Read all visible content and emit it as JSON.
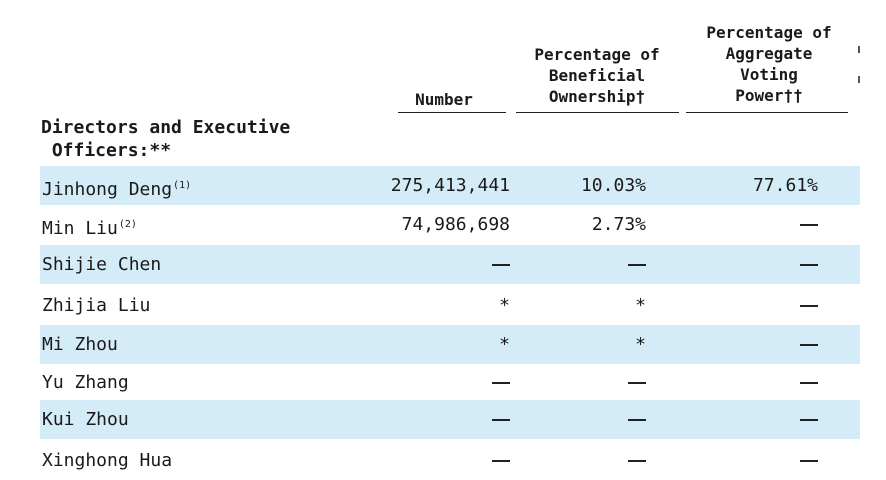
{
  "table": {
    "headers": {
      "number": "Number",
      "beneficial": "Percentage of\nBeneficial\nOwnership†",
      "voting": "Percentage of\nAggregate\nVoting\nPower††"
    },
    "section_title": "Directors and Executive\n Officers:**",
    "dash_symbol": "—",
    "rows": [
      {
        "name": "Jinhong Deng",
        "note": "(1)",
        "number": "275,413,441",
        "beneficial": "10.03%",
        "voting": "77.61%"
      },
      {
        "name": "Min Liu",
        "note": "(2)",
        "number": "74,986,698",
        "beneficial": "2.73%",
        "voting": "—"
      },
      {
        "name": "Shijie Chen",
        "note": "",
        "number": "—",
        "beneficial": "—",
        "voting": "—"
      },
      {
        "name": "Zhijia Liu",
        "note": "",
        "number": "*",
        "beneficial": "*",
        "voting": "—"
      },
      {
        "name": "Mi Zhou",
        "note": "",
        "number": "*",
        "beneficial": "*",
        "voting": "—"
      },
      {
        "name": "Yu Zhang",
        "note": "",
        "number": "—",
        "beneficial": "—",
        "voting": "—"
      },
      {
        "name": "Kui Zhou",
        "note": "",
        "number": "—",
        "beneficial": "—",
        "voting": "—"
      },
      {
        "name": "Xinghong Hua",
        "note": "",
        "number": "—",
        "beneficial": "—",
        "voting": "—"
      }
    ],
    "colors": {
      "row_shade": "#d4ecf7",
      "text": "#1a1a1a",
      "rule": "#222222"
    }
  }
}
